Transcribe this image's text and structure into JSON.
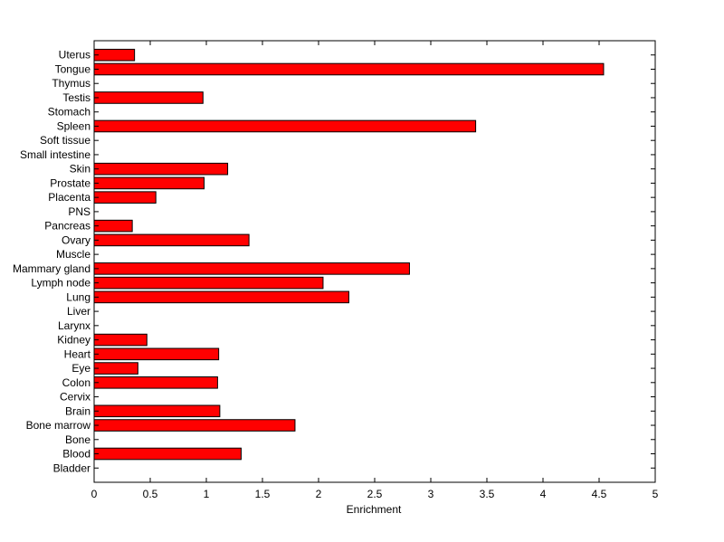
{
  "chart_data": {
    "type": "bar",
    "orientation": "horizontal",
    "title": "",
    "xlabel": "Enrichment",
    "ylabel": "",
    "xlim": [
      0,
      5
    ],
    "xticks": [
      "0",
      "0.5",
      "1",
      "1.5",
      "2",
      "2.5",
      "3",
      "3.5",
      "4",
      "4.5",
      "5"
    ],
    "grid": false,
    "bar_color": "#ff0000",
    "bar_edge_color": "#000000",
    "categories": [
      "Bladder",
      "Blood",
      "Bone",
      "Bone marrow",
      "Brain",
      "Cervix",
      "Colon",
      "Eye",
      "Heart",
      "Kidney",
      "Larynx",
      "Liver",
      "Lung",
      "Lymph node",
      "Mammary gland",
      "Muscle",
      "Ovary",
      "Pancreas",
      "PNS",
      "Placenta",
      "Prostate",
      "Skin",
      "Small intestine",
      "Soft tissue",
      "Spleen",
      "Stomach",
      "Testis",
      "Thymus",
      "Tongue",
      "Uterus"
    ],
    "values": [
      0,
      1.31,
      0,
      1.79,
      1.12,
      0,
      1.1,
      0.39,
      1.11,
      0.47,
      0,
      0,
      2.27,
      2.04,
      2.81,
      0,
      1.38,
      0.34,
      0,
      0.55,
      0.98,
      1.19,
      0,
      0,
      3.4,
      0,
      0.97,
      0,
      4.54,
      0.36
    ]
  }
}
